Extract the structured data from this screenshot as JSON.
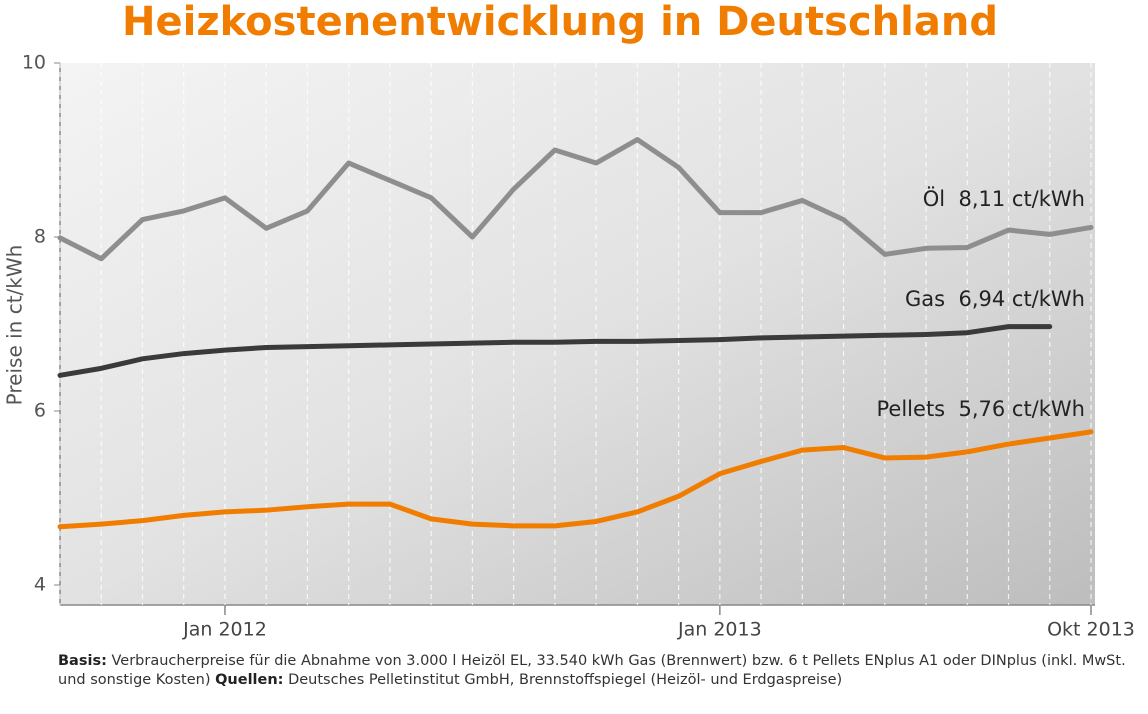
{
  "chart_data": {
    "type": "line",
    "title": "Heizkostenentwicklung in Deutschland",
    "ylabel": "Preise in ct/kWh",
    "x": [
      "2011-09",
      "2011-10",
      "2011-11",
      "2011-12",
      "2012-01",
      "2012-02",
      "2012-03",
      "2012-04",
      "2012-05",
      "2012-06",
      "2012-07",
      "2012-08",
      "2012-09",
      "2012-10",
      "2012-11",
      "2012-12",
      "2013-01",
      "2013-02",
      "2013-03",
      "2013-04",
      "2013-05",
      "2013-06",
      "2013-07",
      "2013-08",
      "2013-09",
      "2013-10"
    ],
    "xlim": [
      "2011-09",
      "2013-10"
    ],
    "xticks": [
      {
        "value": "2012-01",
        "label": "Jan 2012"
      },
      {
        "value": "2013-01",
        "label": "Jan 2013"
      },
      {
        "value": "2013-10",
        "label": "Okt 2013"
      }
    ],
    "ylim": [
      4,
      10
    ],
    "yticks": [
      4,
      6,
      8,
      10
    ],
    "series": [
      {
        "name": "Öl",
        "color": "#8e8e8e",
        "values": [
          7.99,
          7.75,
          8.2,
          8.3,
          8.45,
          8.1,
          8.3,
          8.85,
          8.65,
          8.45,
          8.0,
          8.55,
          9.0,
          8.85,
          9.12,
          8.8,
          8.28,
          8.28,
          8.42,
          8.2,
          7.8,
          7.87,
          7.88,
          8.08,
          8.03,
          8.11
        ]
      },
      {
        "name": "Gas",
        "color": "#3a3a3a",
        "values": [
          6.41,
          6.49,
          6.6,
          6.66,
          6.7,
          6.73,
          6.74,
          6.75,
          6.76,
          6.77,
          6.78,
          6.79,
          6.79,
          6.8,
          6.8,
          6.81,
          6.82,
          6.84,
          6.85,
          6.86,
          6.87,
          6.88,
          6.9,
          6.97,
          6.97,
          null
        ]
      },
      {
        "name": "Pellets",
        "color": "#f07d00",
        "values": [
          4.67,
          4.7,
          4.74,
          4.8,
          4.84,
          4.86,
          4.9,
          4.93,
          4.93,
          4.76,
          4.7,
          4.68,
          4.68,
          4.73,
          4.84,
          5.02,
          5.28,
          5.42,
          5.55,
          5.58,
          5.46,
          5.47,
          5.53,
          5.62,
          5.69,
          5.76
        ]
      }
    ],
    "annotations": [
      "Öl  8,11 ct/kWh",
      "Gas  6,94 ct/kWh",
      "Pellets  5,76 ct/kWh"
    ],
    "note": [
      "Basis:",
      " Verbraucherpreise für die Abnahme von 3.000 l Heizöl EL, 33.540 kWh Gas (Brennwert) bzw. 6 t Pellets ENplus A1 oder DINplus (inkl. MwSt. und sonstige Kosten) ",
      "Quellen:",
      " Deutsches Pelletinstitut GmbH, Brennstoffspiegel (Heizöl- und Erdgaspreise)"
    ]
  }
}
